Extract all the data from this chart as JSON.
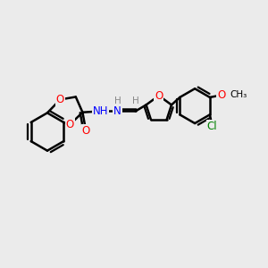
{
  "background_color": "#ebebeb",
  "bond_color": "#000000",
  "bond_width": 1.8,
  "atom_colors": {
    "O": "#ff0000",
    "N": "#0000ff",
    "Cl": "#008000",
    "H": "#888888",
    "C": "#000000"
  },
  "font_size_atom": 8.5,
  "font_size_h": 7.5,
  "font_size_label": 7.5
}
